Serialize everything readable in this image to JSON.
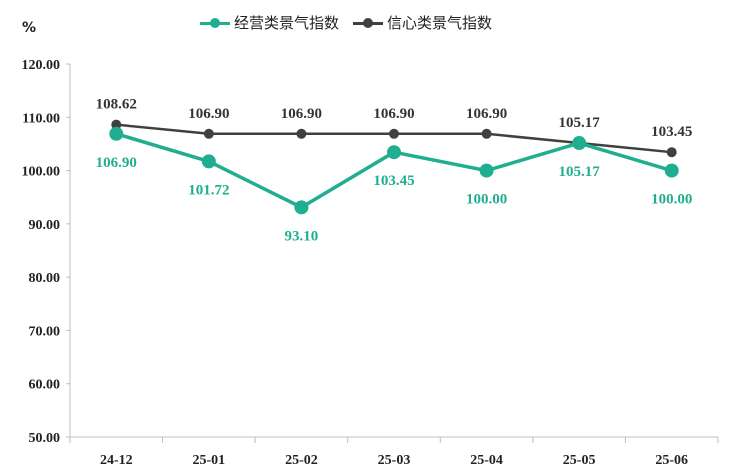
{
  "chart_data": {
    "type": "line",
    "ylabel_unit": "%",
    "categories": [
      "24-12",
      "25-01",
      "25-02",
      "25-03",
      "25-04",
      "25-05",
      "25-06"
    ],
    "ylim": [
      50,
      120
    ],
    "yticks": [
      "50.00",
      "60.00",
      "70.00",
      "80.00",
      "90.00",
      "100.00",
      "110.00",
      "120.00"
    ],
    "grid": false,
    "legend_position": "top-center",
    "series": [
      {
        "name": "经营类景气指数",
        "color": "#20ae90",
        "values": [
          106.9,
          101.72,
          93.1,
          103.45,
          100.0,
          105.17,
          100.0
        ],
        "labels": [
          "106.90",
          "101.72",
          "93.10",
          "103.45",
          "100.00",
          "105.17",
          "100.00"
        ]
      },
      {
        "name": "信心类景气指数",
        "color": "#404040",
        "values": [
          108.62,
          106.9,
          106.9,
          106.9,
          106.9,
          105.17,
          103.45
        ],
        "labels": [
          "108.62",
          "106.90",
          "106.90",
          "106.90",
          "106.90",
          "105.17",
          "103.45"
        ]
      }
    ]
  }
}
